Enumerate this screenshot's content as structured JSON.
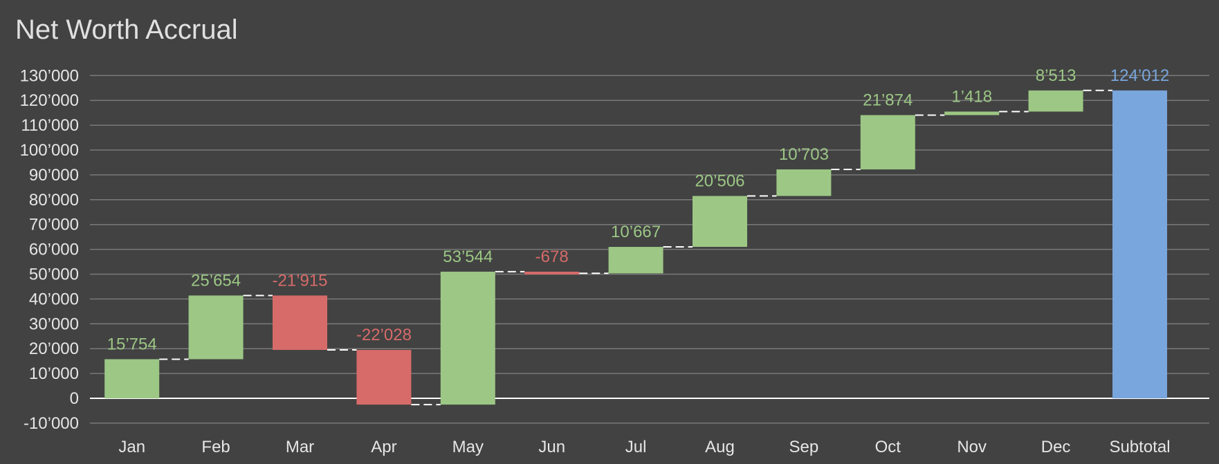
{
  "chart_data": {
    "type": "bar",
    "title": "Net Worth Accrual",
    "xlabel": "",
    "ylabel": "",
    "ylim": [
      -10000,
      130000
    ],
    "ytick_step": 10000,
    "grid": true,
    "legend": "none",
    "categories": [
      "Jan",
      "Feb",
      "Mar",
      "Apr",
      "May",
      "Jun",
      "Jul",
      "Aug",
      "Sep",
      "Oct",
      "Nov",
      "Dec",
      "Subtotal"
    ],
    "values": [
      15754,
      25654,
      -21915,
      -22028,
      53544,
      -678,
      10667,
      20506,
      10703,
      21874,
      1418,
      8513,
      124012
    ],
    "value_labels": [
      "15’754",
      "25’654",
      "-21’915",
      "-22’028",
      "53’544",
      "-678",
      "10’667",
      "20’506",
      "10’703",
      "21’874",
      "1’418",
      "8’513",
      "124’012"
    ],
    "ytick_labels": [
      "-10’000",
      "0",
      "10’000",
      "20’000",
      "30’000",
      "40’000",
      "50’000",
      "60’000",
      "70’000",
      "80’000",
      "90’000",
      "100’000",
      "110’000",
      "120’000",
      "130’000"
    ],
    "subtotal_index": 12,
    "colors": {
      "background": "#424242",
      "increase": "#9cc785",
      "decrease": "#d66b69",
      "subtotal": "#79a6dc",
      "grid": "#7a7a7a",
      "zero_line": "#ffffff",
      "connector": "#ffffff",
      "text": "#e6e6e6",
      "title": "#e0e0e0"
    }
  }
}
